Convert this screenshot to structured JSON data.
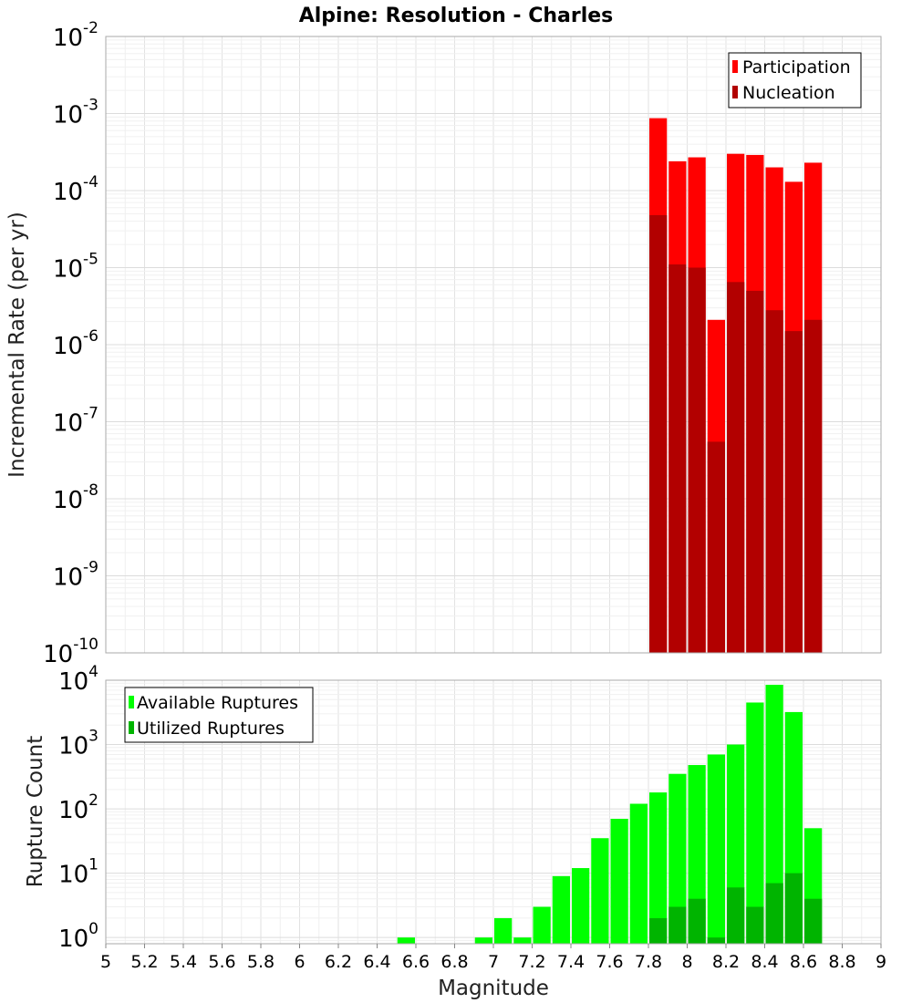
{
  "chart_data": [
    {
      "type": "bar",
      "title": "Alpine: Resolution - Charles",
      "xlabel": "",
      "ylabel": "Incremental Rate (per yr)",
      "yscale": "log",
      "xlim": [
        5,
        9
      ],
      "ylim": [
        1e-10,
        0.01
      ],
      "y_tick_exponents": [
        "-10",
        "-9",
        "-8",
        "-7",
        "-6",
        "-5",
        "-4",
        "-3",
        "-2"
      ],
      "y_tick_base": "10",
      "bin_width": 0.1,
      "grid": true,
      "legend_position": "top-right",
      "series": [
        {
          "name": "Participation",
          "color": "#ff0000",
          "x": [
            7.85,
            7.95,
            8.05,
            8.15,
            8.25,
            8.35,
            8.45,
            8.55,
            8.65
          ],
          "values": [
            0.00087,
            0.00024,
            0.00027,
            2.1e-06,
            0.0003,
            0.00029,
            0.0002,
            0.00013,
            0.00023
          ]
        },
        {
          "name": "Nucleation",
          "color": "#b20000",
          "x": [
            7.85,
            7.95,
            8.05,
            8.15,
            8.25,
            8.35,
            8.45,
            8.55,
            8.65
          ],
          "values": [
            4.8e-05,
            1.1e-05,
            1e-05,
            5.5e-08,
            6.5e-06,
            5e-06,
            2.8e-06,
            1.5e-06,
            2.1e-06
          ]
        }
      ]
    },
    {
      "type": "bar",
      "title": "",
      "xlabel": "Magnitude",
      "ylabel": "Rupture Count",
      "yscale": "log",
      "xlim": [
        5,
        9
      ],
      "ylim": [
        0.8,
        10000
      ],
      "y_tick_exponents": [
        "0",
        "1",
        "2",
        "3",
        "4"
      ],
      "y_tick_base": "10",
      "x_tick_labels": [
        "5",
        "5.2",
        "5.4",
        "5.6",
        "5.8",
        "6",
        "6.2",
        "6.4",
        "6.6",
        "6.8",
        "7",
        "7.2",
        "7.4",
        "7.6",
        "7.8",
        "8",
        "8.2",
        "8.4",
        "8.6",
        "8.8",
        "9"
      ],
      "bin_width": 0.1,
      "grid": true,
      "legend_position": "top-left",
      "series": [
        {
          "name": "Available Ruptures",
          "color": "#00ff00",
          "x": [
            6.55,
            6.95,
            7.05,
            7.15,
            7.25,
            7.35,
            7.45,
            7.55,
            7.65,
            7.75,
            7.85,
            7.95,
            8.05,
            8.15,
            8.25,
            8.35,
            8.45,
            8.55,
            8.65
          ],
          "values": [
            1,
            1,
            2,
            1,
            3,
            9,
            12,
            35,
            70,
            120,
            180,
            350,
            480,
            700,
            1000,
            4500,
            8500,
            3200,
            50
          ]
        },
        {
          "name": "Utilized Ruptures",
          "color": "#00b400",
          "x": [
            7.85,
            7.95,
            8.05,
            8.15,
            8.25,
            8.35,
            8.45,
            8.55,
            8.65
          ],
          "values": [
            2,
            3,
            4,
            1,
            6,
            3,
            7,
            10,
            4
          ]
        }
      ]
    }
  ]
}
